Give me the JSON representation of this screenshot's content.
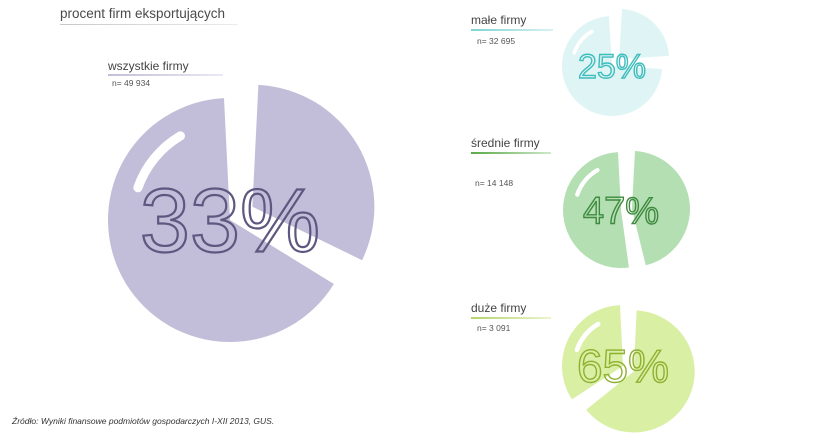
{
  "page": {
    "title": "procent firm eksportujących",
    "source": "Źródło: Wyniki finansowe podmiotów gospodarczych I-XII 2013, GUS."
  },
  "chart_data": [
    {
      "type": "pie",
      "label": "wszystkie firmy",
      "n_label": "n= 49 934",
      "value_percent": 33,
      "pct_label": "33%",
      "colors": {
        "fill": "#c2bed9",
        "text": "#5e5880",
        "underline": "#c2bed9"
      }
    },
    {
      "type": "pie",
      "label": "małe firmy",
      "n_label": "n= 32 695",
      "value_percent": 25,
      "pct_label": "25%",
      "colors": {
        "fill": "#dff4f4",
        "text": "#3fbdbd",
        "underline": "#7fd4d4"
      }
    },
    {
      "type": "pie",
      "label": "średnie firmy",
      "n_label": "n= 14 148",
      "value_percent": 47,
      "pct_label": "47%",
      "colors": {
        "fill": "#b3dfb3",
        "text": "#3f8a3f",
        "underline": "#5aaa4a"
      }
    },
    {
      "type": "pie",
      "label": "duże firmy",
      "n_label": "n= 3 091",
      "value_percent": 65,
      "pct_label": "65%",
      "colors": {
        "fill": "#d9f0a4",
        "text": "#8fb030",
        "underline": "#b5d46a"
      }
    }
  ]
}
